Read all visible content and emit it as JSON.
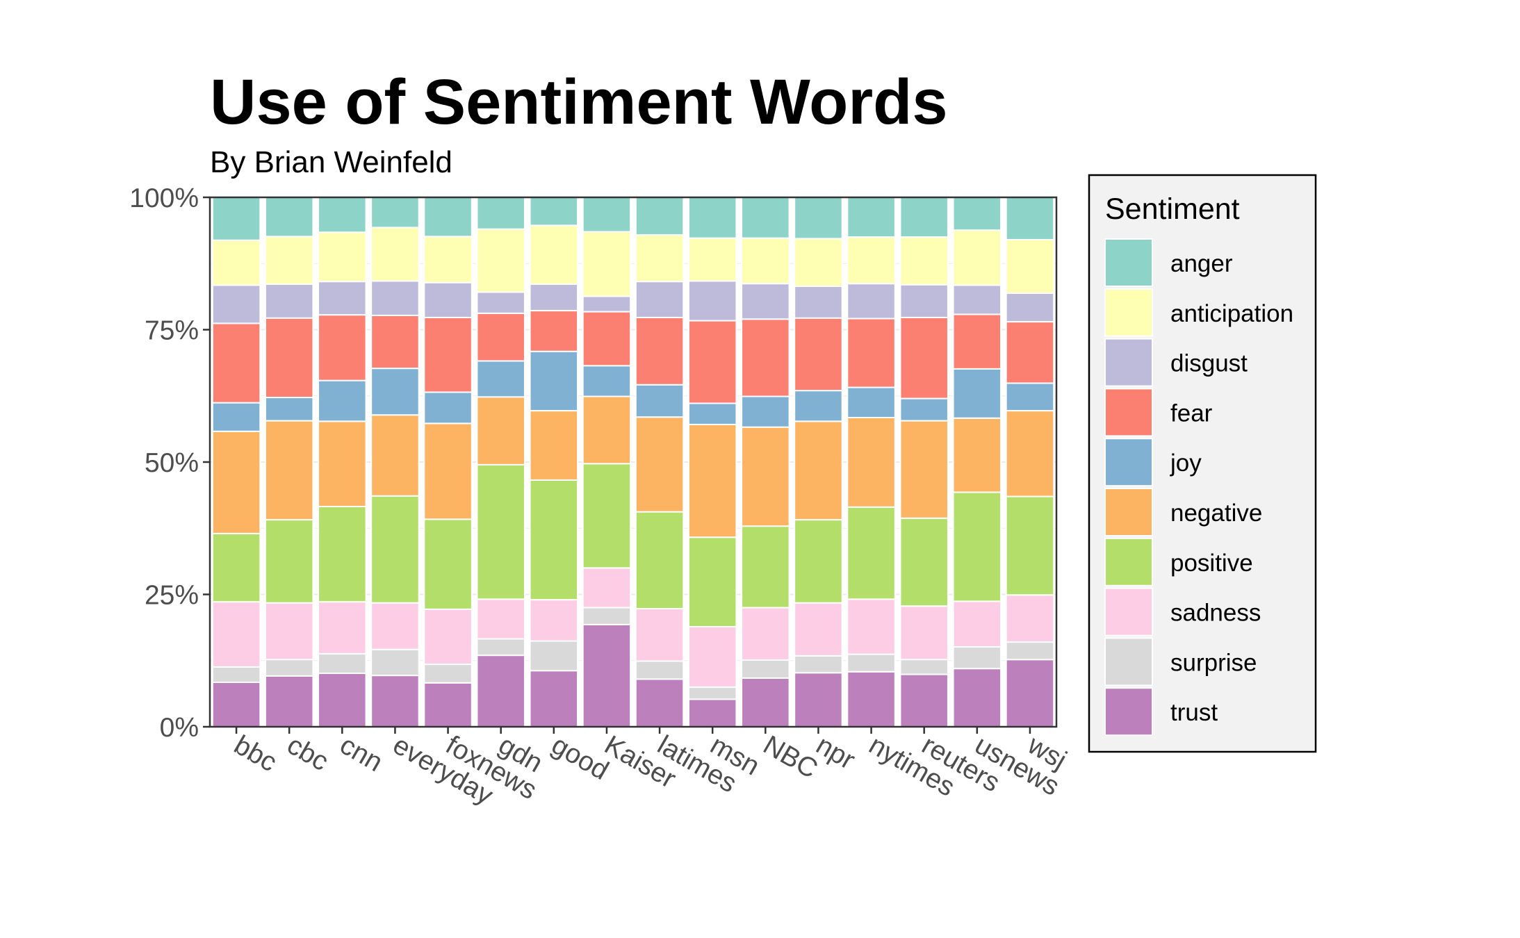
{
  "chart_data": {
    "type": "bar",
    "stacked": true,
    "normalized": true,
    "title": "Use of Sentiment Words",
    "subtitle": "By Brian Weinfeld",
    "xlabel": "",
    "ylabel": "",
    "ylim": [
      0,
      1
    ],
    "yticks": [
      "0%",
      "25%",
      "50%",
      "75%",
      "100%"
    ],
    "legend_title": "Sentiment",
    "legend_position": "right",
    "categories": [
      "bbc",
      "cbc",
      "cnn",
      "everyday",
      "foxnews",
      "gdn",
      "good",
      "Kaiser",
      "latimes",
      "msn",
      "NBC",
      "npr",
      "nytimes",
      "reuters",
      "usnews",
      "wsj"
    ],
    "series": [
      {
        "name": "trust",
        "color": "#BC80BD",
        "values": [
          8.4,
          9.6,
          10.1,
          9.7,
          8.3,
          13.5,
          10.6,
          19.3,
          9.0,
          5.2,
          9.2,
          10.2,
          10.4,
          9.9,
          11.0,
          12.7
        ]
      },
      {
        "name": "surprise",
        "color": "#D9D9D9",
        "values": [
          2.9,
          3.1,
          3.7,
          4.9,
          3.5,
          3.1,
          5.6,
          3.2,
          3.4,
          2.3,
          3.4,
          3.2,
          3.3,
          2.8,
          4.1,
          3.3
        ]
      },
      {
        "name": "sadness",
        "color": "#FCCDE5",
        "values": [
          12.3,
          10.7,
          9.8,
          8.8,
          10.4,
          7.5,
          7.8,
          7.5,
          9.9,
          11.4,
          9.9,
          10.0,
          10.4,
          10.1,
          8.6,
          8.9
        ]
      },
      {
        "name": "positive",
        "color": "#B3DE69",
        "values": [
          12.9,
          15.7,
          18.0,
          20.2,
          17.0,
          25.4,
          22.6,
          19.7,
          18.3,
          16.9,
          15.4,
          15.7,
          17.4,
          16.6,
          20.6,
          18.6
        ]
      },
      {
        "name": "negative",
        "color": "#FDB462",
        "values": [
          19.3,
          18.7,
          16.1,
          15.3,
          18.1,
          12.8,
          13.1,
          12.7,
          17.9,
          21.3,
          18.7,
          18.6,
          16.9,
          18.4,
          14.0,
          16.2
        ]
      },
      {
        "name": "joy",
        "color": "#80B1D3",
        "values": [
          5.4,
          4.4,
          7.7,
          8.8,
          5.9,
          6.8,
          11.2,
          5.8,
          6.1,
          4.0,
          5.8,
          5.8,
          5.7,
          4.2,
          9.3,
          5.2
        ]
      },
      {
        "name": "fear",
        "color": "#FB8072",
        "values": [
          15.0,
          15.0,
          12.4,
          10.0,
          14.1,
          9.0,
          7.7,
          10.2,
          12.7,
          15.6,
          14.6,
          13.7,
          13.0,
          15.3,
          10.3,
          11.6
        ]
      },
      {
        "name": "disgust",
        "color": "#BEBADA",
        "values": [
          7.2,
          6.4,
          6.3,
          6.5,
          6.6,
          4.0,
          5.0,
          2.9,
          6.8,
          7.5,
          6.7,
          6.0,
          6.6,
          6.2,
          5.5,
          5.4
        ]
      },
      {
        "name": "anticipation",
        "color": "#FFFFB3",
        "values": [
          8.5,
          9.0,
          9.3,
          10.1,
          8.7,
          11.9,
          11.1,
          12.2,
          8.8,
          8.1,
          8.6,
          9.0,
          8.8,
          9.0,
          10.4,
          10.1
        ]
      },
      {
        "name": "anger",
        "color": "#8DD3C7",
        "values": [
          8.1,
          7.4,
          6.6,
          5.7,
          7.4,
          6.0,
          5.3,
          6.5,
          7.1,
          7.7,
          7.7,
          7.8,
          7.5,
          7.5,
          6.2,
          8.0
        ]
      }
    ]
  }
}
